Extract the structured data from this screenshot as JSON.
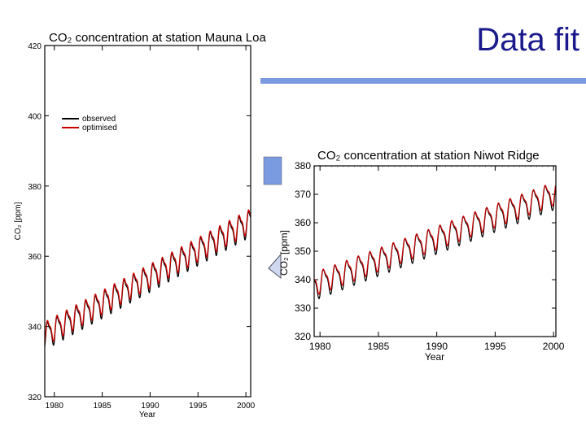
{
  "slide": {
    "title": "Data fit",
    "accent_color": "#7b9be0",
    "title_color": "#1a1a8c"
  },
  "chart_data": [
    {
      "type": "line",
      "title": "CO₂ concentration at station Mauna Loa",
      "xlabel": "Year",
      "ylabel": "CO₂ [ppm]",
      "xlim": [
        1979,
        2000.5
      ],
      "ylim": [
        320,
        420
      ],
      "x_ticks": [
        1980,
        1985,
        1990,
        1995,
        2000
      ],
      "x_tick_labels": [
        "1980",
        "1985",
        "1990",
        "1995",
        "2000"
      ],
      "y_ticks": [
        320,
        340,
        360,
        380,
        400,
        420
      ],
      "y_tick_labels": [
        "320",
        "340",
        "360",
        "380",
        "400",
        "420"
      ],
      "legend": [
        "observed",
        "optimised"
      ],
      "legend_position": "upper-left",
      "series": [
        {
          "name": "observed",
          "color": "#000000",
          "start_year": 1979,
          "end_year": 2000.5,
          "baseline_start": 337.5,
          "trend_per_year": 1.5,
          "amplitude": 3.3
        },
        {
          "name": "optimised",
          "color": "#cc0000",
          "start_year": 1979,
          "end_year": 2000.5,
          "baseline_start": 338.2,
          "trend_per_year": 1.5,
          "amplitude": 3.0
        }
      ]
    },
    {
      "type": "line",
      "title": "CO₂ concentration at station Niwot Ridge",
      "xlabel": "Year",
      "ylabel": "CO₂ [ppm]",
      "xlim": [
        1979.5,
        2000.2
      ],
      "ylim": [
        320,
        380
      ],
      "x_ticks": [
        1980,
        1985,
        1990,
        1995,
        2000
      ],
      "x_tick_labels": [
        "1980",
        "1985",
        "1990",
        "1995",
        "2000"
      ],
      "y_ticks": [
        320,
        330,
        340,
        350,
        360,
        370,
        380
      ],
      "y_tick_labels": [
        "320",
        "330",
        "340",
        "350",
        "360",
        "370",
        "380"
      ],
      "series": [
        {
          "name": "observed",
          "color": "#000000",
          "start_year": 1979.5,
          "end_year": 2000.2,
          "baseline_start": 338.0,
          "trend_per_year": 1.55,
          "amplitude": 4.2
        },
        {
          "name": "optimised",
          "color": "#cc0000",
          "start_year": 1979.5,
          "end_year": 2000.2,
          "baseline_start": 338.8,
          "trend_per_year": 1.55,
          "amplitude": 3.6
        }
      ]
    }
  ]
}
